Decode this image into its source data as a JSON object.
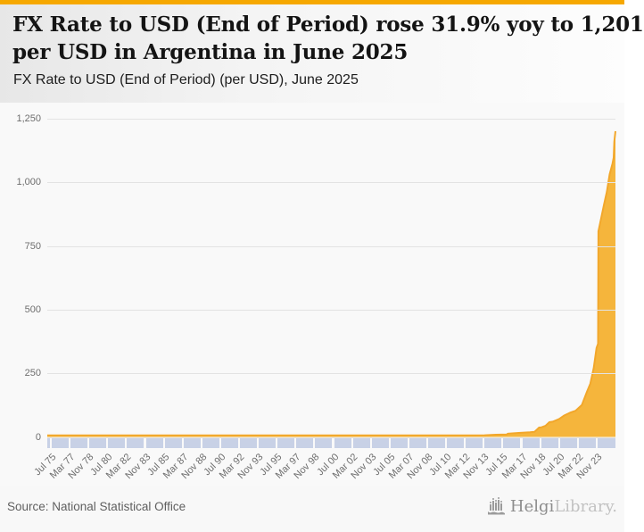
{
  "header": {
    "title_line1": "FX Rate to USD (End of Period) rose 31.9% yoy to 1,201",
    "title_line2": "per USD in Argentina in June 2025",
    "subtitle": "FX Rate to USD (End of Period) (per USD), June 2025"
  },
  "chart_data": {
    "type": "area",
    "title": "FX Rate to USD (End of Period) rose 31.9% yoy to 1,201 per USD in Argentina in June 2025",
    "subtitle": "FX Rate to USD (End of Period) (per USD), June 2025",
    "country": "Argentina",
    "latest_period": "June 2025",
    "latest_value": 1201,
    "yoy_change_pct": 31.9,
    "grid": true,
    "legend": false,
    "ylim": [
      0,
      1250
    ],
    "x_range": [
      1975.5,
      2025.46
    ],
    "y_tick_values": [
      0,
      250,
      500,
      750,
      1000,
      1250
    ],
    "y_tick_labels": [
      "0",
      "250",
      "500",
      "750",
      "1,000",
      "1,250"
    ],
    "x_tick_labels": [
      "Jul 75",
      "Mar 77",
      "Nov 78",
      "Jul 80",
      "Mar 82",
      "Nov 83",
      "Jul 85",
      "Mar 87",
      "Nov 88",
      "Jul 90",
      "Mar 92",
      "Nov 93",
      "Jul 95",
      "Mar 97",
      "Nov 98",
      "Jul 00",
      "Mar 02",
      "Nov 03",
      "Jul 05",
      "Mar 07",
      "Nov 08",
      "Jul 10",
      "Mar 12",
      "Nov 13",
      "Jul 15",
      "Mar 17",
      "Nov 18",
      "Jul 20",
      "Mar 22",
      "Nov 23"
    ],
    "series": [
      {
        "name": "FX Rate to USD (End of Period), per USD",
        "points": [
          [
            1975.5,
            0
          ],
          [
            1990.9,
            0.01
          ],
          [
            1991.3,
            1
          ],
          [
            2001.95,
            1
          ],
          [
            2002.1,
            1.7
          ],
          [
            2002.3,
            2.9
          ],
          [
            2002.5,
            3.6
          ],
          [
            2002.75,
            3.7
          ],
          [
            2002.95,
            3.4
          ],
          [
            2003.95,
            2.9
          ],
          [
            2004.95,
            3.0
          ],
          [
            2005.95,
            3.0
          ],
          [
            2006.95,
            3.1
          ],
          [
            2007.95,
            3.2
          ],
          [
            2008.95,
            3.5
          ],
          [
            2009.95,
            3.8
          ],
          [
            2010.95,
            4.0
          ],
          [
            2011.95,
            4.3
          ],
          [
            2012.95,
            4.9
          ],
          [
            2013.95,
            6.5
          ],
          [
            2014.95,
            8.6
          ],
          [
            2015.9,
            9.8
          ],
          [
            2016.0,
            13.0
          ],
          [
            2016.95,
            15.9
          ],
          [
            2017.95,
            18.6
          ],
          [
            2018.35,
            20.2
          ],
          [
            2018.55,
            28.9
          ],
          [
            2018.75,
            36.8
          ],
          [
            2018.95,
            37.7
          ],
          [
            2019.3,
            43.4
          ],
          [
            2019.65,
            58.0
          ],
          [
            2019.95,
            59.9
          ],
          [
            2020.5,
            70.5
          ],
          [
            2020.95,
            84.1
          ],
          [
            2021.5,
            95.7
          ],
          [
            2021.95,
            102.7
          ],
          [
            2022.5,
            125.2
          ],
          [
            2022.95,
            177.1
          ],
          [
            2023.25,
            209
          ],
          [
            2023.55,
            270
          ],
          [
            2023.8,
            350
          ],
          [
            2023.93,
            366
          ],
          [
            2023.96,
            808
          ],
          [
            2024.2,
            858
          ],
          [
            2024.45,
            912
          ],
          [
            2024.7,
            962
          ],
          [
            2024.95,
            1032
          ],
          [
            2025.2,
            1074
          ],
          [
            2025.3,
            1097
          ],
          [
            2025.36,
            1160
          ],
          [
            2025.46,
            1201
          ]
        ]
      }
    ]
  },
  "colors": {
    "top_bar": "#f6a800",
    "area_fill": "#f5b53c",
    "area_line": "#f2a72b",
    "axis_band": "#c8d1e6",
    "grid_line": "#e3e3e3"
  },
  "footer": {
    "source": "Source: National Statistical Office",
    "brand": {
      "icon": "helgi-bars-logo",
      "name_primary": "Helgi",
      "name_secondary": "Library."
    }
  }
}
